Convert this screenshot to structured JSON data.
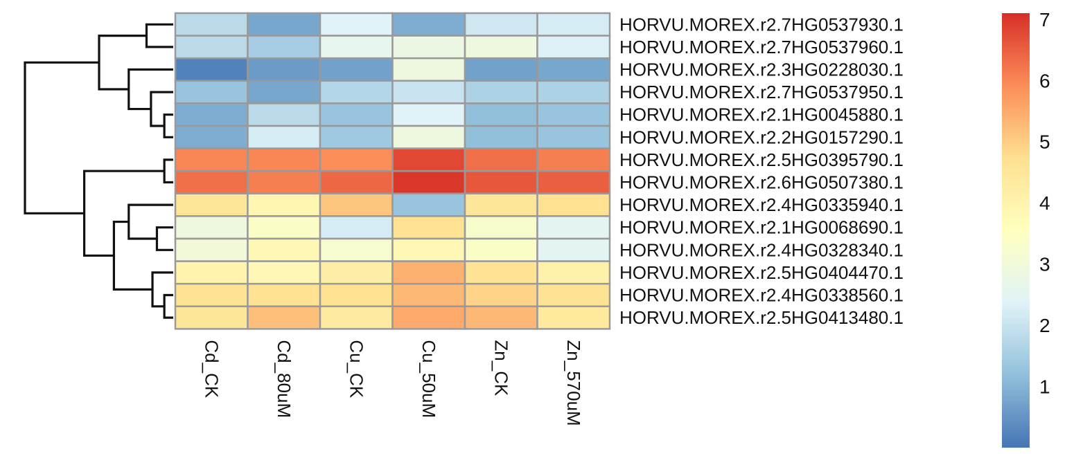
{
  "chart_data": {
    "type": "heatmap",
    "title": "",
    "columns": [
      "Cd_CK",
      "Cd_80uM",
      "Cu_CK",
      "Cu_50uM",
      "Zn_CK",
      "Zn_570uM"
    ],
    "rows": [
      "HORVU.MOREX.r2.7HG0537930.1",
      "HORVU.MOREX.r2.7HG0537960.1",
      "HORVU.MOREX.r2.3HG0228030.1",
      "HORVU.MOREX.r2.7HG0537950.1",
      "HORVU.MOREX.r2.1HG0045880.1",
      "HORVU.MOREX.r2.2HG0157290.1",
      "HORVU.MOREX.r2.5HG0395790.1",
      "HORVU.MOREX.r2.6HG0507380.1",
      "HORVU.MOREX.r2.4HG0335940.1",
      "HORVU.MOREX.r2.1HG0068690.1",
      "HORVU.MOREX.r2.4HG0328340.1",
      "HORVU.MOREX.r2.5HG0404470.1",
      "HORVU.MOREX.r2.4HG0338560.1",
      "HORVU.MOREX.r2.5HG0413480.1"
    ],
    "values": [
      [
        1.8,
        0.8,
        2.4,
        0.9,
        2.1,
        2.2
      ],
      [
        1.8,
        1.5,
        2.6,
        2.8,
        2.9,
        2.3
      ],
      [
        0.2,
        0.6,
        0.7,
        2.9,
        0.7,
        0.8
      ],
      [
        1.3,
        0.8,
        1.7,
        2.0,
        1.6,
        1.6
      ],
      [
        0.9,
        1.8,
        1.3,
        2.4,
        1.2,
        1.3
      ],
      [
        0.9,
        2.2,
        1.4,
        2.9,
        1.2,
        1.3
      ],
      [
        6.0,
        6.0,
        5.9,
        6.8,
        6.3,
        6.1
      ],
      [
        6.3,
        6.1,
        6.4,
        7.0,
        6.6,
        6.5
      ],
      [
        4.5,
        3.9,
        5.1,
        1.3,
        4.5,
        4.7
      ],
      [
        2.9,
        3.4,
        2.2,
        4.6,
        3.3,
        2.5
      ],
      [
        3.0,
        3.8,
        3.2,
        3.8,
        3.4,
        2.5
      ],
      [
        4.0,
        3.8,
        4.2,
        5.4,
        4.6,
        4.1
      ],
      [
        4.6,
        4.7,
        4.7,
        5.3,
        4.9,
        4.6
      ],
      [
        4.5,
        5.2,
        4.3,
        5.5,
        5.3,
        4.4
      ]
    ],
    "color_scale": {
      "stops": [
        "#4575b4",
        "#91bfdb",
        "#e0f3f8",
        "#ffffbf",
        "#fee090",
        "#fc8d59",
        "#d73027"
      ],
      "range": [
        0.0,
        7.1
      ],
      "ticks": [
        "1",
        "2",
        "3",
        "4",
        "5",
        "6",
        "7"
      ],
      "cell_border": "#999999"
    },
    "dendrogram": {
      "leaf_order": [
        0,
        1,
        2,
        3,
        4,
        5,
        6,
        7,
        8,
        9,
        10,
        11,
        12,
        13
      ],
      "merges": [
        {
          "left": 4,
          "right": 5,
          "height": 0.06
        },
        {
          "left": 3,
          "right": "m0",
          "height": 0.15
        },
        {
          "left": 2,
          "right": "m1",
          "height": 0.3
        },
        {
          "left": 0,
          "right": 1,
          "height": 0.18
        },
        {
          "left": "m3",
          "right": "m2",
          "height": 0.5
        },
        {
          "left": 6,
          "right": 7,
          "height": 0.06
        },
        {
          "left": 12,
          "right": 13,
          "height": 0.06
        },
        {
          "left": 11,
          "right": "m6",
          "height": 0.14
        },
        {
          "left": 9,
          "right": 10,
          "height": 0.11
        },
        {
          "left": 8,
          "right": "m8",
          "height": 0.3
        },
        {
          "left": "m9",
          "right": "m7",
          "height": 0.4
        },
        {
          "left": "m5",
          "right": "m10",
          "height": 0.6
        },
        {
          "left": "m4",
          "right": "m11",
          "height": 1.0
        }
      ]
    }
  }
}
